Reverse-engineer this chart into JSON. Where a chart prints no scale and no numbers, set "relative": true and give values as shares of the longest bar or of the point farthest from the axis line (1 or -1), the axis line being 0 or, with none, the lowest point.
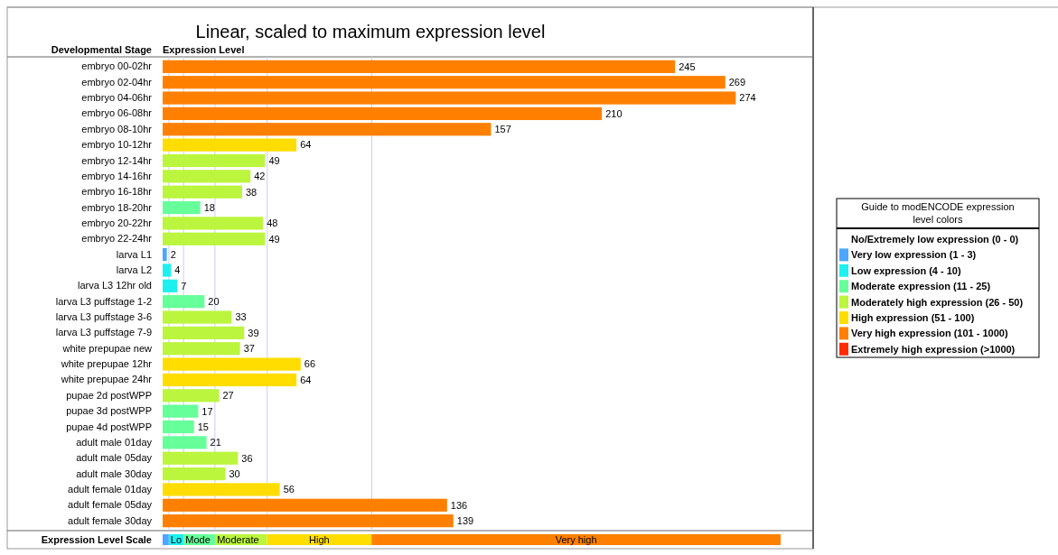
{
  "chart_data": [
    {
      "type": "bar",
      "orientation": "horizontal",
      "stacked": true,
      "title": "Linear, scaled to maximum expression level",
      "xlabel": "Expression Level",
      "ylabel": "Developmental Stage",
      "legend_title": "Guide to modENCODE expression level colors",
      "legend": "right",
      "data_labels": true,
      "tick_labels": "y",
      "xlim": [
        0,
        311
      ],
      "categories": [
        "embryo 00-02hr",
        "embryo 02-04hr",
        "embryo 04-06hr",
        "embryo 06-08hr",
        "embryo 08-10hr",
        "embryo 10-12hr",
        "embryo 12-14hr",
        "embryo 14-16hr",
        "embryo 16-18hr",
        "embryo 18-20hr",
        "embryo 20-22hr",
        "embryo 22-24hr",
        "larva L1",
        "larva L2",
        "larva L3 12hr old",
        "larva L3 puffstage 1-2",
        "larva L3 puffstage 3-6",
        "larva L3 puffstage 7-9",
        "white prepupae new",
        "white prepupae 12hr",
        "white prepupae 24hr",
        "pupae 2d postWPP",
        "pupae 3d postWPP",
        "pupae 4d postWPP",
        "adult male 01day",
        "adult male 05day",
        "adult male 30day",
        "adult female 01day",
        "adult female 05day",
        "adult female 30day"
      ],
      "series": [
        {
          "name": "No/Extremely low expression (0 - 0)",
          "values": [
            null,
            null,
            null,
            null,
            null,
            null,
            null,
            null,
            null,
            null,
            null,
            null,
            null,
            null,
            null,
            null,
            null,
            null,
            null,
            null,
            null,
            null,
            null,
            null,
            null,
            null,
            null,
            null,
            null,
            null
          ]
        },
        {
          "name": "Very low expression (1 - 3)",
          "color": "#4da6ff",
          "values": [
            null,
            null,
            null,
            null,
            null,
            null,
            null,
            null,
            null,
            null,
            null,
            null,
            2,
            null,
            null,
            null,
            null,
            null,
            null,
            null,
            null,
            null,
            null,
            null,
            null,
            null,
            null,
            null,
            null,
            null
          ]
        },
        {
          "name": "Low expression (4 - 10)",
          "color": "#1ef0f0",
          "values": [
            null,
            null,
            null,
            null,
            null,
            null,
            null,
            null,
            null,
            null,
            null,
            null,
            null,
            4,
            7,
            null,
            null,
            null,
            null,
            null,
            null,
            null,
            null,
            null,
            null,
            null,
            null,
            null,
            null,
            null
          ]
        },
        {
          "name": "Moderate expression (11 - 25)",
          "color": "#66ff99",
          "values": [
            null,
            null,
            null,
            null,
            null,
            null,
            null,
            null,
            null,
            18,
            null,
            null,
            null,
            null,
            null,
            20,
            null,
            null,
            null,
            null,
            null,
            null,
            17,
            15,
            21,
            null,
            null,
            null,
            null,
            null
          ]
        },
        {
          "name": "Moderately high expression (26 - 50)",
          "color": "#bbf53d",
          "values": [
            null,
            null,
            null,
            null,
            null,
            null,
            49,
            42,
            38,
            null,
            48,
            49,
            null,
            null,
            null,
            null,
            33,
            39,
            37,
            null,
            null,
            27,
            null,
            null,
            null,
            36,
            30,
            null,
            null,
            null
          ]
        },
        {
          "name": "High expression (51 - 100)",
          "color": "#ffdd00",
          "values": [
            null,
            null,
            null,
            null,
            null,
            64,
            null,
            null,
            null,
            null,
            null,
            null,
            null,
            null,
            null,
            null,
            null,
            null,
            null,
            66,
            64,
            null,
            null,
            null,
            null,
            null,
            null,
            56,
            null,
            null
          ]
        },
        {
          "name": "Very high expression (101 - 1000)",
          "color": "#ff8000",
          "values": [
            245,
            269,
            274,
            210,
            157,
            null,
            null,
            null,
            null,
            null,
            null,
            null,
            null,
            null,
            null,
            null,
            null,
            null,
            null,
            null,
            null,
            null,
            null,
            null,
            null,
            null,
            null,
            null,
            136,
            139
          ]
        },
        {
          "name": "Extremely high expression (>1000)",
          "color": "#ff2a00",
          "values": [
            null,
            null,
            null,
            null,
            null,
            null,
            null,
            null,
            null,
            null,
            null,
            null,
            null,
            null,
            null,
            null,
            null,
            null,
            null,
            null,
            null,
            null,
            null,
            null,
            null,
            null,
            null,
            null,
            null,
            null
          ]
        }
      ],
      "ref_lines": [
        {
          "axis": "x",
          "value": 3,
          "color": "#ccccff"
        },
        {
          "axis": "x",
          "value": 10,
          "color": "#ccccff"
        },
        {
          "axis": "x",
          "value": 25,
          "color": "#ccccff"
        },
        {
          "axis": "x",
          "value": 50,
          "color": "#ccccff"
        },
        {
          "axis": "x",
          "value": 100,
          "color": "#ccccff"
        }
      ]
    },
    {
      "type": "bar",
      "orientation": "horizontal",
      "stacked": true,
      "relative": true,
      "tick_labels": "y",
      "categories": [
        "Expression Level Scale"
      ],
      "series": [
        {
          "color": "#4da6ff",
          "values": [
            0.01
          ]
        },
        {
          "name": "Lo",
          "color": "#1ef0f0",
          "values": [
            0.024
          ]
        },
        {
          "name": "Mode",
          "color": "#66ff99",
          "values": [
            0.051
          ]
        },
        {
          "name": "Moderate",
          "color": "#bbf53d",
          "values": [
            0.084
          ]
        },
        {
          "name": "High",
          "color": "#ffdd00",
          "values": [
            0.169
          ]
        },
        {
          "name": "Very high",
          "color": "#ff8000",
          "values": [
            0.662
          ]
        }
      ]
    }
  ]
}
